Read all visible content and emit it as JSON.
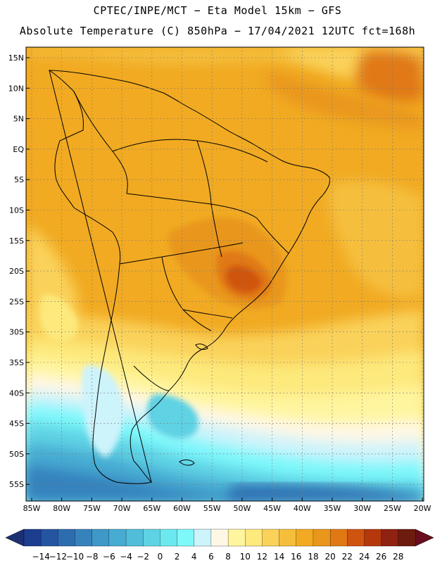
{
  "header": {
    "line1": "CPTEC/INPE/MCT −  Eta Model 15km − GFS",
    "line2": "Absolute Temperature (C) 850hPa − 17/04/2021 12UTC fct=168h"
  },
  "axes": {
    "lat_labels": [
      "15N",
      "10N",
      "5N",
      "EQ",
      "5S",
      "10S",
      "15S",
      "20S",
      "25S",
      "30S",
      "35S",
      "40S",
      "45S",
      "50S",
      "55S"
    ],
    "lon_labels": [
      "85W",
      "80W",
      "75W",
      "70W",
      "65W",
      "60W",
      "55W",
      "50W",
      "45W",
      "40W",
      "35W",
      "30W",
      "25W",
      "20W"
    ]
  },
  "colorbar": {
    "labels": [
      "−14",
      "−12",
      "−10",
      "−8",
      "−6",
      "−4",
      "−2",
      "0",
      "2",
      "4",
      "6",
      "8",
      "10",
      "12",
      "14",
      "16",
      "18",
      "20",
      "22",
      "24",
      "26",
      "28"
    ],
    "colors": [
      "#1d3d8f",
      "#2555a0",
      "#2e6cb0",
      "#3682bd",
      "#3e98c8",
      "#47abd2",
      "#50bdd9",
      "#5fd2e4",
      "#6be9ef",
      "#7ef8fb",
      "#cdf3fb",
      "#fff7e6",
      "#fff59f",
      "#fde97c",
      "#fad25a",
      "#f5bf3c",
      "#f1aa22",
      "#e9971a",
      "#e07914",
      "#cf5410",
      "#b5380d",
      "#8f2210",
      "#6d1b0f"
    ],
    "min_arrow_color": "#1d3072",
    "max_arrow_color": "#6a0d1c"
  }
}
